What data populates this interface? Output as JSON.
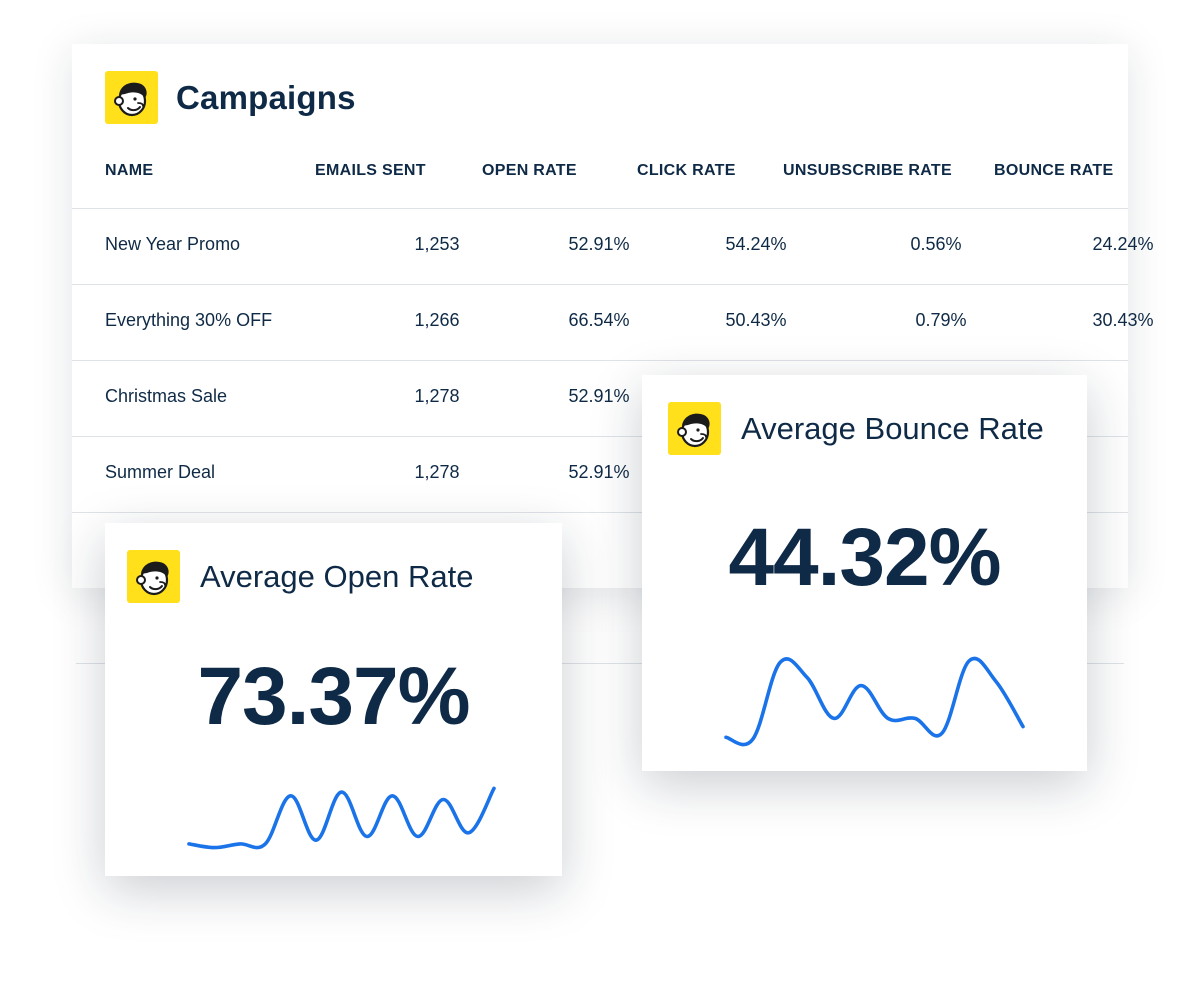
{
  "brand": {
    "logo_icon": "mailchimp-freddie-icon",
    "logo_bg": "#ffe01b"
  },
  "campaigns": {
    "title": "Campaigns",
    "columns": [
      "NAME",
      "EMAILS SENT",
      "OPEN RATE",
      "CLICK RATE",
      "UNSUBSCRIBE RATE",
      "BOUNCE RATE"
    ],
    "rows": [
      {
        "name": "New Year Promo",
        "sent": "1,253",
        "open": "52.91%",
        "click": "54.24%",
        "unsub": "0.56%",
        "bounce": "24.24%"
      },
      {
        "name": "Everything 30% OFF",
        "sent": "1,266",
        "open": "66.54%",
        "click": "50.43%",
        "unsub": "0.79%",
        "bounce": "30.43%"
      },
      {
        "name": "Christmas Sale",
        "sent": "1,278",
        "open": "52.91%"
      },
      {
        "name": "Summer Deal",
        "sent": "1,278",
        "open": "52.91%"
      }
    ]
  },
  "open_card": {
    "title": "Average Open Rate",
    "value": "73.37%",
    "line_color": "#1a73e8",
    "trend": [
      0.15,
      0.1,
      0.15,
      0.15,
      0.8,
      0.2,
      0.85,
      0.25,
      0.8,
      0.25,
      0.75,
      0.3,
      0.9
    ]
  },
  "bounce_card": {
    "title": "Average Bounce Rate",
    "value": "44.32%",
    "line_color": "#1a73e8",
    "trend": [
      0.07,
      0.05,
      0.98,
      0.8,
      0.3,
      0.7,
      0.3,
      0.3,
      0.12,
      1.0,
      0.75,
      0.2
    ]
  }
}
